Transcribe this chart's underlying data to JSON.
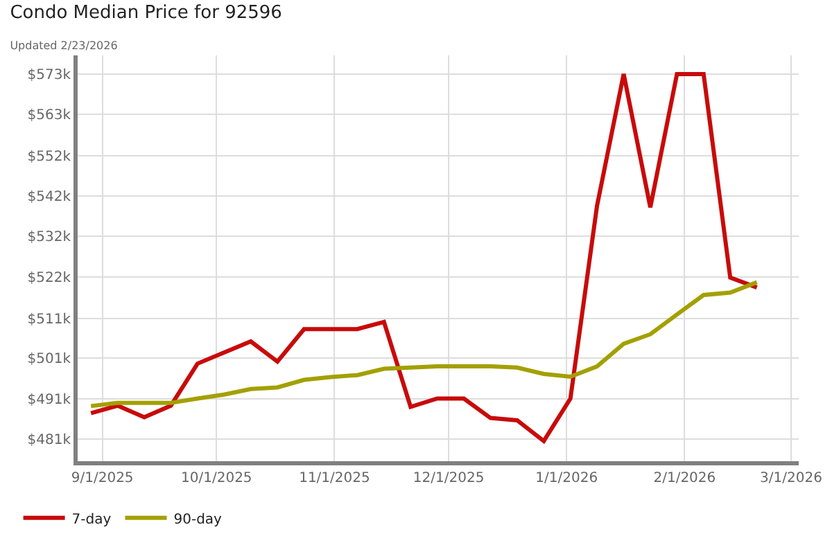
{
  "chart_data": {
    "type": "line",
    "title": "Condo Median Price for 92596",
    "subtitle": "Updated 2/23/2026",
    "x": [
      "2025-08-29",
      "2025-09-05",
      "2025-09-12",
      "2025-09-19",
      "2025-09-26",
      "2025-10-03",
      "2025-10-10",
      "2025-10-17",
      "2025-10-24",
      "2025-10-31",
      "2025-11-07",
      "2025-11-14",
      "2025-11-21",
      "2025-11-28",
      "2025-12-05",
      "2025-12-12",
      "2025-12-19",
      "2025-12-26",
      "2026-01-02",
      "2026-01-09",
      "2026-01-16",
      "2026-01-23",
      "2026-01-30",
      "2026-02-06",
      "2026-02-13",
      "2026-02-20"
    ],
    "series": [
      {
        "name": "7-day",
        "color": "#c80a0a",
        "values": [
          487.5,
          489.4,
          486.5,
          489.4,
          500.0,
          502.8,
          505.6,
          500.5,
          508.7,
          508.7,
          508.7,
          510.5,
          489.1,
          491.2,
          491.2,
          486.3,
          485.7,
          480.5,
          491.2,
          539.8,
          573.0,
          539.4,
          573.0,
          573.0,
          521.7,
          519.2
        ]
      },
      {
        "name": "90-day",
        "color": "#a3a000",
        "values": [
          489.3,
          490.1,
          490.1,
          490.1,
          491.2,
          492.2,
          493.6,
          494.0,
          495.9,
          496.6,
          497.1,
          498.7,
          499.0,
          499.3,
          499.3,
          499.3,
          499.0,
          497.4,
          496.7,
          499.3,
          505.0,
          507.4,
          512.4,
          517.3,
          517.9,
          520.5
        ]
      }
    ],
    "xlim": [
      "2025-08-25T12:00",
      "2026-03-03"
    ],
    "xticks": [
      {
        "value": "2025-09-01",
        "label": "9/1/2025"
      },
      {
        "value": "2025-10-01",
        "label": "10/1/2025"
      },
      {
        "value": "2025-11-01",
        "label": "11/1/2025"
      },
      {
        "value": "2025-12-01",
        "label": "12/1/2025"
      },
      {
        "value": "2026-01-01",
        "label": "1/1/2026"
      },
      {
        "value": "2026-02-01",
        "label": "2/1/2026"
      },
      {
        "value": "2026-03-01",
        "label": "3/1/2026"
      }
    ],
    "ylim": [
      475.4,
      577.7
    ],
    "yticks": [
      {
        "value": 481.0,
        "label": "$481k"
      },
      {
        "value": 491.2,
        "label": "$491k"
      },
      {
        "value": 501.4,
        "label": "$501k"
      },
      {
        "value": 511.4,
        "label": "$511k"
      },
      {
        "value": 521.9,
        "label": "$522k"
      },
      {
        "value": 532.1,
        "label": "$532k"
      },
      {
        "value": 542.3,
        "label": "$542k"
      },
      {
        "value": 552.4,
        "label": "$552k"
      },
      {
        "value": 562.8,
        "label": "$563k"
      },
      {
        "value": 573.0,
        "label": "$573k"
      }
    ],
    "grid": true,
    "legend": "bottom left",
    "marker": "none",
    "line_style": "solid"
  }
}
